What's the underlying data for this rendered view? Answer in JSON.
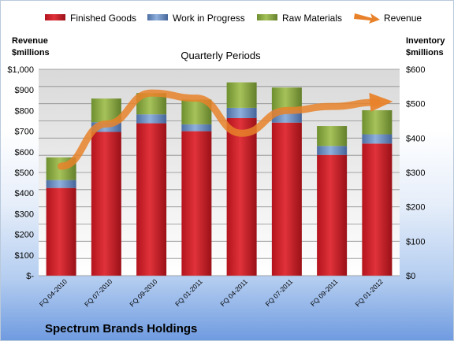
{
  "chart_data": {
    "type": "bar",
    "subtype": "stacked bar with line overlay, dual axis",
    "title": "Quarterly Periods",
    "company": "Spectrum Brands Holdings",
    "categories": [
      "FQ 04-2010",
      "FQ 07-2010",
      "FQ 09-2010",
      "FQ 01-2011",
      "FQ 04-2011",
      "FQ 07-2011",
      "FQ 09-2011",
      "FQ 01-2012"
    ],
    "left_axis": {
      "label_line1": "Revenue",
      "label_line2": "$millions",
      "range": [
        0,
        1000
      ],
      "ticks": [
        0,
        100,
        200,
        300,
        400,
        500,
        600,
        700,
        800,
        900,
        1000
      ],
      "tick_labels": [
        "$-",
        "$100",
        "$200",
        "$300",
        "$400",
        "$500",
        "$600",
        "$700",
        "$800",
        "$900",
        "$1,000"
      ]
    },
    "right_axis": {
      "label_line1": "Inventory",
      "label_line2": "$millions",
      "range": [
        0,
        600
      ],
      "ticks": [
        0,
        100,
        200,
        300,
        400,
        500,
        600
      ],
      "tick_labels": [
        "$0",
        "$100",
        "$200",
        "$300",
        "$400",
        "$500",
        "$600"
      ]
    },
    "series": [
      {
        "name": "Finished Goods",
        "axis": "right",
        "kind": "bar",
        "color": "#c0202a",
        "values": [
          255,
          418,
          443,
          420,
          458,
          445,
          351,
          384
        ]
      },
      {
        "name": "Work in Progress",
        "axis": "right",
        "kind": "bar",
        "color": "#5a7fb5",
        "values": [
          23,
          28,
          26,
          20,
          30,
          36,
          26,
          27
        ]
      },
      {
        "name": "Raw Materials",
        "axis": "right",
        "kind": "bar",
        "color": "#7b9e3a",
        "values": [
          66,
          69,
          62,
          72,
          74,
          66,
          58,
          70
        ]
      },
      {
        "name": "Revenue",
        "axis": "left",
        "kind": "line",
        "color": "#e8822a",
        "values": [
          530,
          735,
          885,
          860,
          690,
          800,
          820,
          840
        ]
      }
    ],
    "grid": true,
    "legend": "top"
  }
}
